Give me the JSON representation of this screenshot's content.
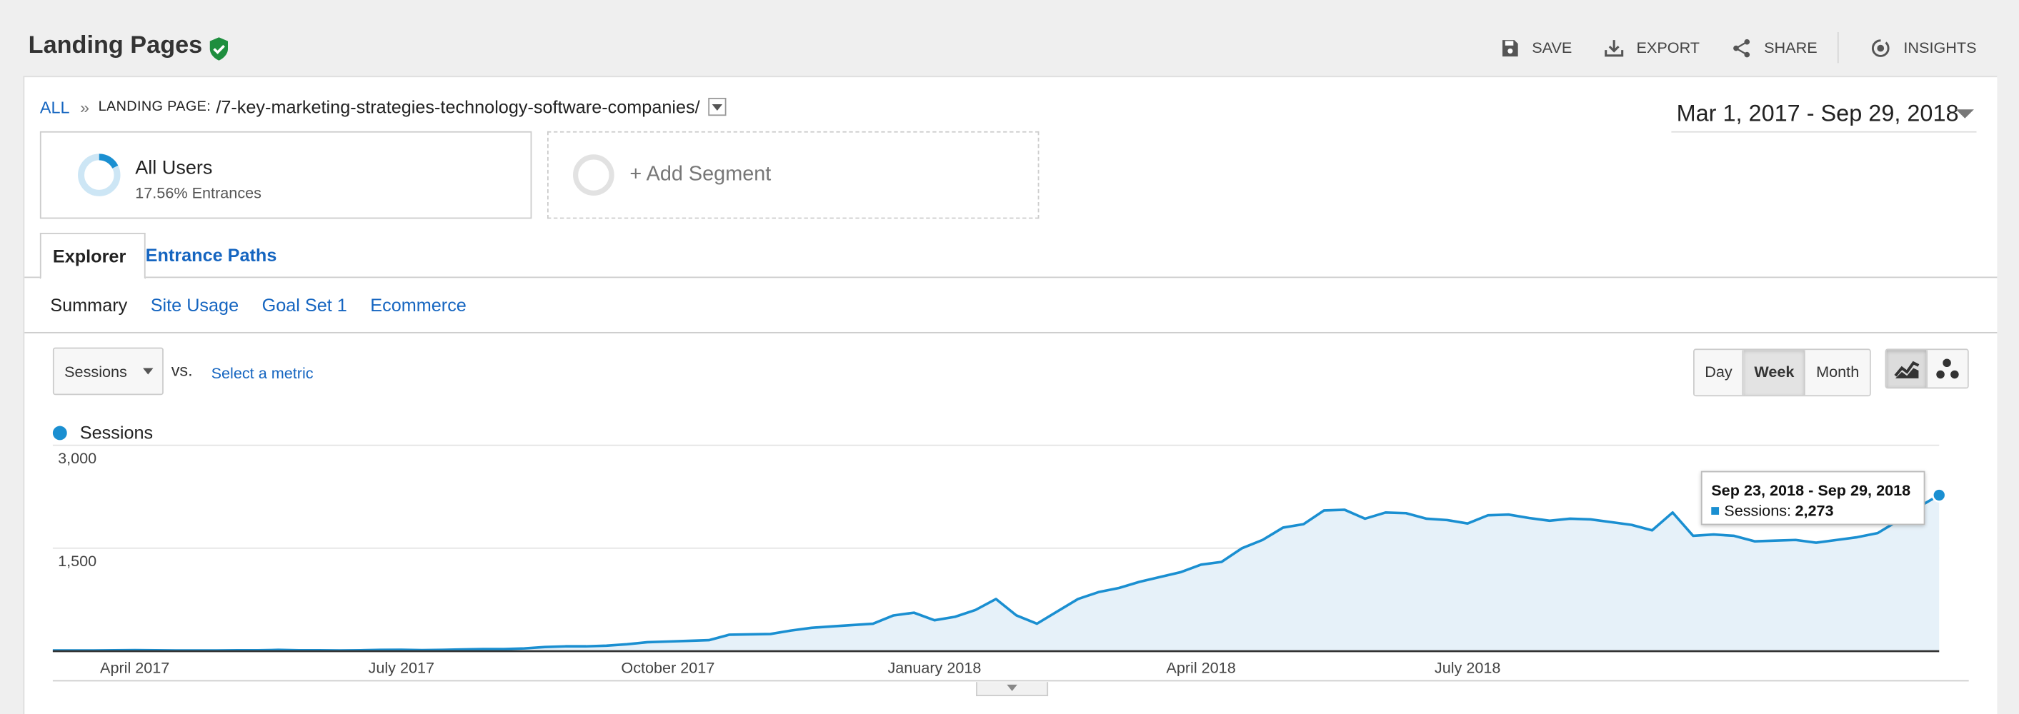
{
  "header": {
    "title": "Landing Pages",
    "actions": [
      {
        "label": "SAVE",
        "icon": "save-icon"
      },
      {
        "label": "EXPORT",
        "icon": "export-icon"
      },
      {
        "label": "SHARE",
        "icon": "share-icon"
      },
      {
        "label": "INSIGHTS",
        "icon": "insights-icon"
      }
    ]
  },
  "breadcrumb": {
    "all": "ALL",
    "separator": "»",
    "key": "LANDING PAGE:",
    "value": "/7-key-marketing-strategies-technology-software-companies/"
  },
  "date_range": "Mar 1, 2017 - Sep 29, 2018",
  "segments": {
    "all_users": {
      "name": "All Users",
      "detail": "17.56% Entrances"
    },
    "add_label": "+ Add Segment"
  },
  "tabs": [
    {
      "label": "Explorer",
      "active": true
    },
    {
      "label": "Entrance Paths",
      "active": false
    }
  ],
  "subtabs": [
    {
      "label": "Summary",
      "selected": true
    },
    {
      "label": "Site Usage",
      "selected": false
    },
    {
      "label": "Goal Set 1",
      "selected": false
    },
    {
      "label": "Ecommerce",
      "selected": false
    }
  ],
  "metric": {
    "selected": "Sessions",
    "vs_label": "vs.",
    "select_link": "Select a metric"
  },
  "period_buttons": [
    {
      "label": "Day",
      "active": false
    },
    {
      "label": "Week",
      "active": true
    },
    {
      "label": "Month",
      "active": false
    }
  ],
  "chart_type_buttons": [
    {
      "name": "line-chart-icon",
      "active": true
    },
    {
      "name": "motion-chart-icon",
      "active": false
    }
  ],
  "colors": {
    "accent": "#1a8fd1",
    "area_fill": "#e6f1f9",
    "gridline": "#e3e3e3",
    "link": "#1565c0",
    "verified": "#1e8e3e"
  },
  "tooltip": {
    "title": "Sep 23, 2018 - Sep 29, 2018",
    "label": "Sessions:",
    "value": "2,273"
  },
  "chart_data": {
    "type": "area",
    "series": [
      {
        "name": "Sessions",
        "values": [
          10,
          10,
          10,
          12,
          14,
          12,
          10,
          10,
          10,
          12,
          12,
          18,
          12,
          12,
          10,
          12,
          18,
          20,
          14,
          18,
          25,
          30,
          30,
          40,
          60,
          70,
          70,
          80,
          100,
          130,
          140,
          150,
          160,
          240,
          245,
          250,
          300,
          340,
          360,
          380,
          400,
          520,
          560,
          450,
          500,
          600,
          760,
          520,
          400,
          580,
          760,
          860,
          920,
          1010,
          1080,
          1150,
          1260,
          1300,
          1500,
          1620,
          1800,
          1850,
          2050,
          2060,
          1930,
          2020,
          2010,
          1930,
          1910,
          1860,
          1980,
          1990,
          1940,
          1900,
          1930,
          1920,
          1880,
          1840,
          1760,
          2020,
          1680,
          1700,
          1680,
          1600,
          1610,
          1620,
          1580,
          1620,
          1660,
          1720,
          1900,
          2100,
          2273
        ]
      }
    ],
    "x_tick_labels": [
      "April 2017",
      "July 2017",
      "October 2017",
      "January 2018",
      "April 2018",
      "July 2018"
    ],
    "x_tick_index": [
      4,
      17,
      30,
      43,
      56,
      69
    ],
    "y_ticks": [
      {
        "value": 1500,
        "label": "1,500"
      },
      {
        "value": 3000,
        "label": "3,000"
      }
    ],
    "ylim": [
      0,
      3000
    ],
    "grid": true,
    "legend": "top-left"
  }
}
